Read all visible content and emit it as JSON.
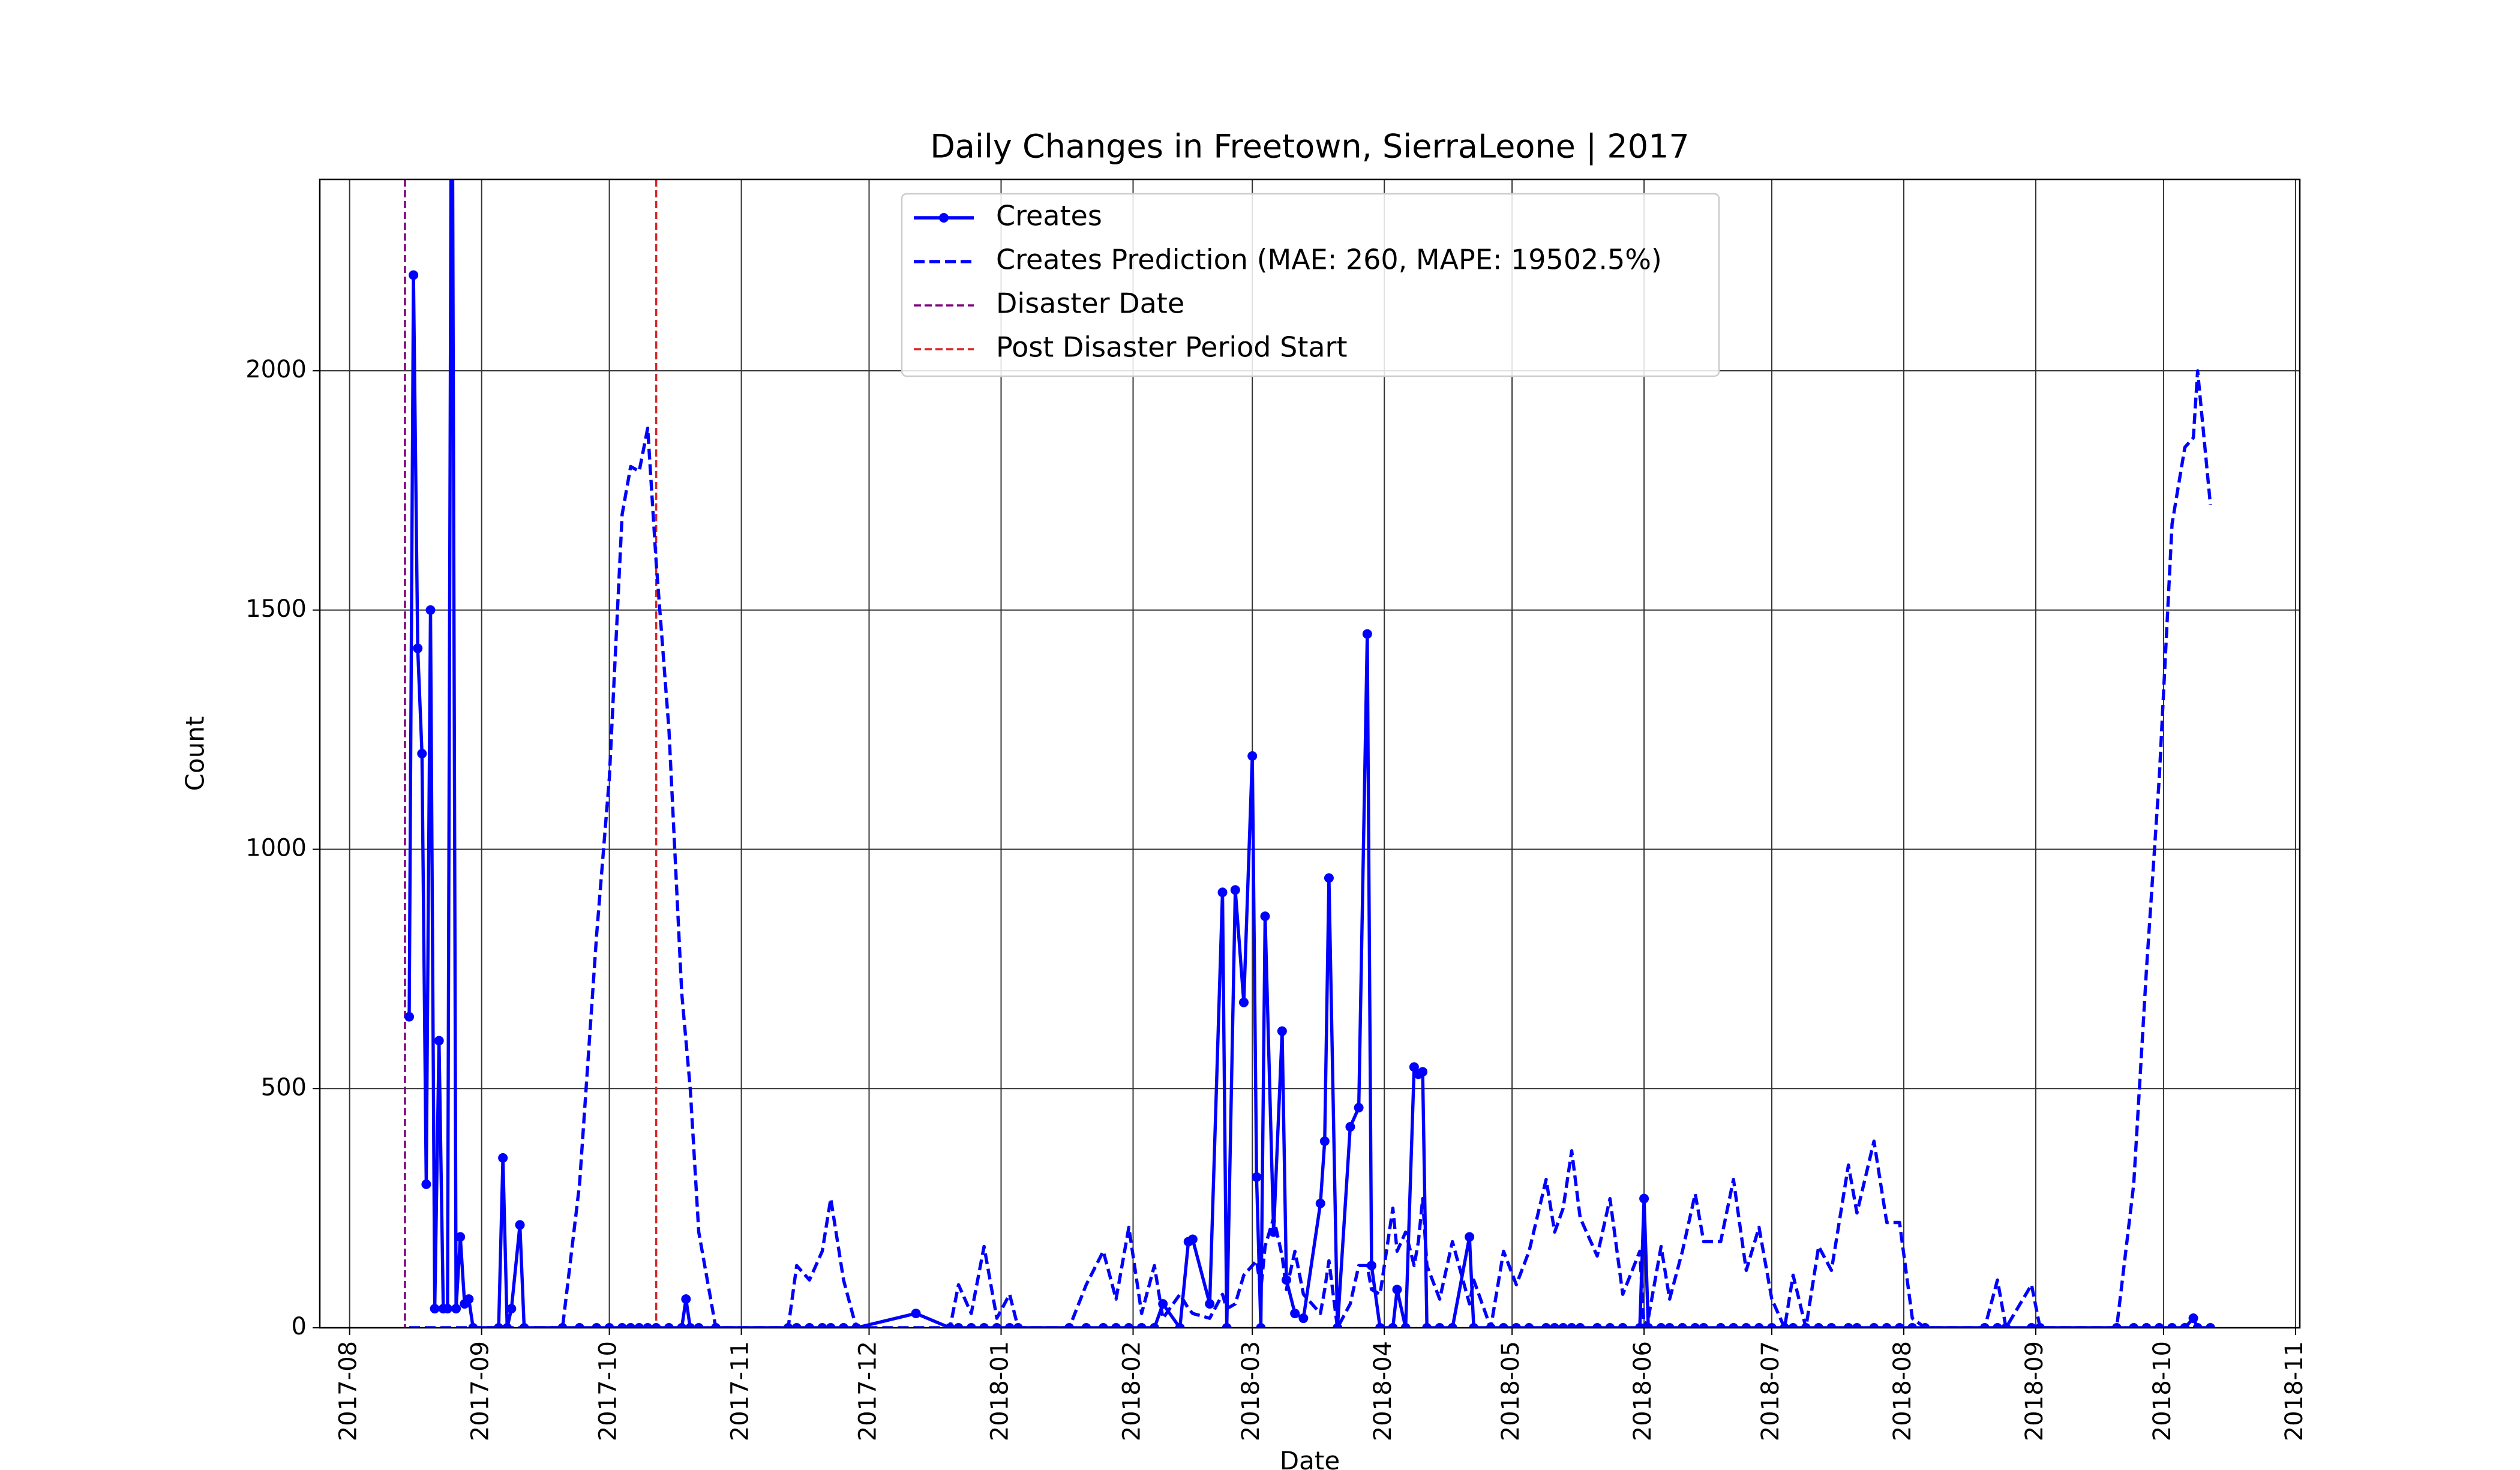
{
  "chart_data": {
    "type": "line",
    "title": "Daily Changes in Freetown, SierraLeone | 2017",
    "xlabel": "Date",
    "ylabel": "Count",
    "x": [
      "2017-08-15",
      "2017-08-16",
      "2017-08-17",
      "2017-08-18",
      "2017-08-19",
      "2017-08-20",
      "2017-08-21",
      "2017-08-22",
      "2017-08-23",
      "2017-08-24",
      "2017-08-25",
      "2017-08-26",
      "2017-08-27",
      "2017-08-28",
      "2017-08-29",
      "2017-08-30",
      "2017-09-05",
      "2017-09-06",
      "2017-09-07",
      "2017-09-08",
      "2017-09-10",
      "2017-09-11",
      "2017-09-20",
      "2017-09-24",
      "2017-09-28",
      "2017-10-01",
      "2017-10-04",
      "2017-10-06",
      "2017-10-08",
      "2017-10-10",
      "2017-10-12",
      "2017-10-15",
      "2017-10-18",
      "2017-10-19",
      "2017-10-20",
      "2017-10-22",
      "2017-10-26",
      "2017-11-12",
      "2017-11-14",
      "2017-11-17",
      "2017-11-20",
      "2017-11-22",
      "2017-11-25",
      "2017-11-28",
      "2017-12-12",
      "2017-12-20",
      "2017-12-22",
      "2017-12-25",
      "2017-12-28",
      "2017-12-31",
      "2018-01-03",
      "2018-01-05",
      "2018-01-17",
      "2018-01-21",
      "2018-01-25",
      "2018-01-28",
      "2018-01-31",
      "2018-02-03",
      "2018-02-06",
      "2018-02-08",
      "2018-02-12",
      "2018-02-14",
      "2018-02-15",
      "2018-02-19",
      "2018-02-22",
      "2018-02-23",
      "2018-02-25",
      "2018-02-27",
      "2018-03-01",
      "2018-03-02",
      "2018-03-03",
      "2018-03-04",
      "2018-03-06",
      "2018-03-08",
      "2018-03-09",
      "2018-03-11",
      "2018-03-13",
      "2018-03-17",
      "2018-03-18",
      "2018-03-19",
      "2018-03-21",
      "2018-03-24",
      "2018-03-26",
      "2018-03-28",
      "2018-03-29",
      "2018-03-31",
      "2018-04-03",
      "2018-04-04",
      "2018-04-06",
      "2018-04-08",
      "2018-04-09",
      "2018-04-10",
      "2018-04-11",
      "2018-04-14",
      "2018-04-17",
      "2018-04-21",
      "2018-04-22",
      "2018-04-26",
      "2018-04-29",
      "2018-05-02",
      "2018-05-05",
      "2018-05-09",
      "2018-05-11",
      "2018-05-13",
      "2018-05-15",
      "2018-05-17",
      "2018-05-21",
      "2018-05-24",
      "2018-05-27",
      "2018-05-31",
      "2018-06-01",
      "2018-06-02",
      "2018-06-05",
      "2018-06-07",
      "2018-06-10",
      "2018-06-13",
      "2018-06-15",
      "2018-06-19",
      "2018-06-22",
      "2018-06-25",
      "2018-06-28",
      "2018-07-01",
      "2018-07-04",
      "2018-07-06",
      "2018-07-09",
      "2018-07-12",
      "2018-07-15",
      "2018-07-19",
      "2018-07-21",
      "2018-07-25",
      "2018-07-28",
      "2018-07-31",
      "2018-08-03",
      "2018-08-06",
      "2018-08-20",
      "2018-08-23",
      "2018-08-25",
      "2018-08-31",
      "2018-09-02",
      "2018-09-20",
      "2018-09-24",
      "2018-09-27",
      "2018-09-30",
      "2018-10-03",
      "2018-10-06",
      "2018-10-08",
      "2018-10-09",
      "2018-10-12"
    ],
    "series": [
      {
        "name": "Creates",
        "color": "#0000ff",
        "style": "solid-marker",
        "values": [
          650,
          2200,
          1420,
          1200,
          300,
          1500,
          40,
          600,
          40,
          40,
          3000,
          40,
          190,
          50,
          60,
          0,
          0,
          355,
          0,
          40,
          215,
          0,
          0,
          0,
          0,
          0,
          0,
          0,
          0,
          0,
          0,
          0,
          0,
          60,
          0,
          0,
          0,
          0,
          0,
          0,
          0,
          0,
          0,
          0,
          30,
          0,
          0,
          0,
          0,
          0,
          0,
          0,
          0,
          0,
          0,
          0,
          0,
          0,
          0,
          50,
          0,
          180,
          185,
          50,
          910,
          0,
          915,
          680,
          1195,
          315,
          0,
          860,
          200,
          620,
          100,
          30,
          20,
          260,
          390,
          940,
          0,
          420,
          460,
          1450,
          130,
          0,
          0,
          80,
          0,
          545,
          530,
          535,
          0,
          0,
          0,
          190,
          0,
          0,
          0,
          0,
          0,
          0,
          0,
          0,
          0,
          0,
          0,
          0,
          0,
          0,
          270,
          0,
          0,
          0,
          0,
          0,
          0,
          0,
          0,
          0,
          0,
          0,
          0,
          0,
          0,
          0,
          0,
          0,
          0,
          0,
          0,
          0,
          0,
          0,
          0,
          0,
          0,
          0,
          0,
          0,
          0,
          0,
          0,
          0,
          0,
          20,
          0,
          0
        ]
      },
      {
        "name": "Creates Prediction (MAE: 260, MAPE: 19502.5%)",
        "color": "#0000ff",
        "style": "dashed",
        "values": [
          0,
          0,
          0,
          0,
          0,
          0,
          0,
          0,
          0,
          0,
          0,
          0,
          0,
          0,
          0,
          0,
          0,
          0,
          0,
          0,
          0,
          0,
          0,
          300,
          820,
          1150,
          1700,
          1800,
          1790,
          1880,
          1600,
          1250,
          700,
          600,
          500,
          200,
          0,
          0,
          130,
          100,
          160,
          270,
          100,
          0,
          0,
          0,
          90,
          30,
          170,
          20,
          70,
          0,
          0,
          90,
          160,
          60,
          210,
          30,
          130,
          20,
          70,
          40,
          30,
          20,
          70,
          40,
          50,
          110,
          130,
          140,
          80,
          170,
          230,
          150,
          80,
          160,
          70,
          30,
          80,
          140,
          0,
          50,
          130,
          130,
          80,
          70,
          250,
          160,
          200,
          130,
          180,
          270,
          130,
          60,
          180,
          50,
          100,
          0,
          160,
          90,
          160,
          310,
          200,
          250,
          370,
          230,
          150,
          270,
          70,
          160,
          0,
          20,
          170,
          60,
          160,
          280,
          180,
          180,
          310,
          120,
          210,
          60,
          0,
          110,
          0,
          170,
          120,
          340,
          240,
          390,
          220,
          220,
          20,
          0,
          0,
          100,
          0,
          90,
          0,
          0,
          300,
          750,
          1150,
          1680,
          1840,
          1860,
          2000,
          1720
        ]
      }
    ],
    "vlines": [
      {
        "name": "Disaster Date",
        "x": "2017-08-14",
        "color": "#800080"
      },
      {
        "name": "Post Disaster Period Start",
        "x": "2017-10-12",
        "color": "#d62728"
      }
    ],
    "xlim": [
      "2017-07-25",
      "2018-11-02"
    ],
    "xticks": [
      {
        "value": "2017-08-01",
        "label": "2017-08"
      },
      {
        "value": "2017-09-01",
        "label": "2017-09"
      },
      {
        "value": "2017-10-01",
        "label": "2017-10"
      },
      {
        "value": "2017-11-01",
        "label": "2017-11"
      },
      {
        "value": "2017-12-01",
        "label": "2017-12"
      },
      {
        "value": "2018-01-01",
        "label": "2018-01"
      },
      {
        "value": "2018-02-01",
        "label": "2018-02"
      },
      {
        "value": "2018-03-01",
        "label": "2018-03"
      },
      {
        "value": "2018-04-01",
        "label": "2018-04"
      },
      {
        "value": "2018-05-01",
        "label": "2018-05"
      },
      {
        "value": "2018-06-01",
        "label": "2018-06"
      },
      {
        "value": "2018-07-01",
        "label": "2018-07"
      },
      {
        "value": "2018-08-01",
        "label": "2018-08"
      },
      {
        "value": "2018-09-01",
        "label": "2018-09"
      },
      {
        "value": "2018-10-01",
        "label": "2018-10"
      },
      {
        "value": "2018-11-01",
        "label": "2018-11"
      }
    ],
    "ylim": [
      0,
      2400
    ],
    "yticks": [
      0,
      500,
      1000,
      1500,
      2000
    ],
    "grid": true,
    "legend": "upper center"
  }
}
